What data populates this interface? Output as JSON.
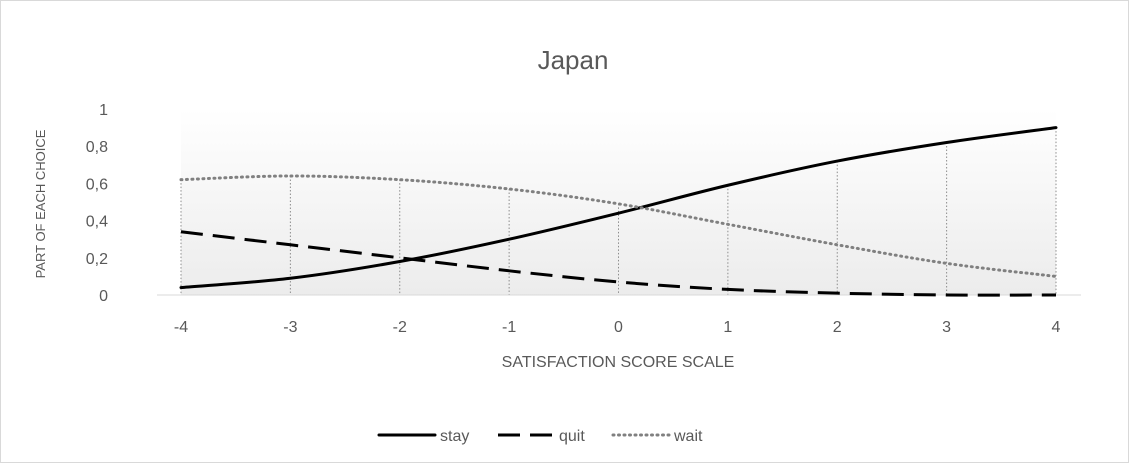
{
  "chart_data": {
    "type": "line",
    "title": "Japan",
    "xlabel": "SATISFACTION SCORE SCALE",
    "ylabel": "PART OF EACH CHOICE",
    "x": [
      -4,
      -3,
      -2,
      -1,
      0,
      1,
      2,
      3,
      4
    ],
    "x_tick_labels": [
      "-4",
      "-3",
      "-2",
      "-1",
      "0",
      "1",
      "2",
      "3",
      "4"
    ],
    "y_tick_values": [
      0,
      0.2,
      0.4,
      0.6,
      0.8,
      1
    ],
    "y_tick_labels": [
      "0",
      "0,2",
      "0,4",
      "0,6",
      "0,8",
      "1"
    ],
    "ylim": [
      0,
      1
    ],
    "xlim": [
      -4,
      4
    ],
    "grid": "vertical dotted drop lines",
    "legend_position": "bottom",
    "series": [
      {
        "name": "stay",
        "style": "solid",
        "color": "#000000",
        "values": [
          0.04,
          0.09,
          0.18,
          0.3,
          0.44,
          0.59,
          0.72,
          0.82,
          0.9
        ]
      },
      {
        "name": "quit",
        "style": "dashed",
        "color": "#000000",
        "values": [
          0.34,
          0.27,
          0.2,
          0.13,
          0.07,
          0.03,
          0.01,
          0.0,
          0.0
        ]
      },
      {
        "name": "wait",
        "style": "dotted",
        "color": "#808080",
        "values": [
          0.62,
          0.64,
          0.62,
          0.57,
          0.49,
          0.38,
          0.27,
          0.17,
          0.1
        ]
      }
    ]
  }
}
